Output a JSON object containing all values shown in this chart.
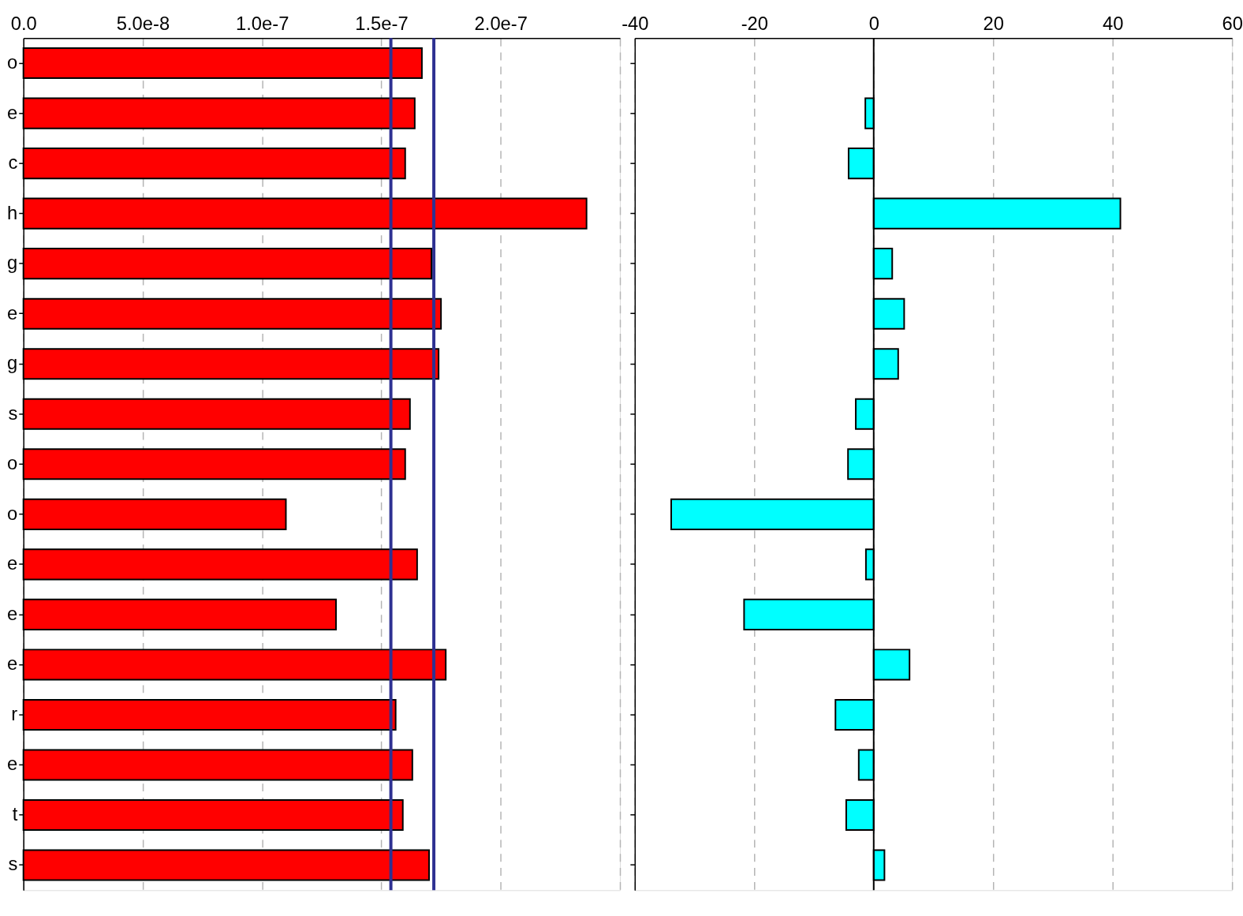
{
  "chart_data": [
    {
      "type": "bar",
      "orientation": "horizontal",
      "categories": [
        "o",
        "e",
        "c",
        "h",
        "g",
        "e",
        "g",
        "s",
        "o",
        "o",
        "e",
        "e",
        "e",
        "r",
        "e",
        "t",
        "s"
      ],
      "series": [
        {
          "color": "#ff0000",
          "values": [
            1.67e-07,
            1.64e-07,
            1.6e-07,
            2.36e-07,
            1.71e-07,
            1.75e-07,
            1.74e-07,
            1.62e-07,
            1.6e-07,
            1.1e-07,
            1.65e-07,
            1.31e-07,
            1.77e-07,
            1.56e-07,
            1.63e-07,
            1.59e-07,
            1.7e-07
          ]
        }
      ],
      "xlim": [
        0,
        2.5e-07
      ],
      "xticks": [
        {
          "value": 0,
          "label": "0.0"
        },
        {
          "value": 5e-08,
          "label": "5.0e-8"
        },
        {
          "value": 1e-07,
          "label": "1.0e-7"
        },
        {
          "value": 1.5e-07,
          "label": "1.5e-7"
        },
        {
          "value": 2e-07,
          "label": "2.0e-7"
        },
        {
          "value": 2.5e-07,
          "label": null
        }
      ],
      "grid": "x",
      "ref_lines": [
        {
          "axis": "x",
          "value": 1.54e-07,
          "color": "#2e3192"
        },
        {
          "axis": "x",
          "value": 1.72e-07,
          "color": "#2e3192"
        }
      ]
    },
    {
      "type": "bar",
      "orientation": "horizontal",
      "categories": [
        null,
        null,
        null,
        null,
        null,
        null,
        null,
        null,
        null,
        null,
        null,
        null,
        null,
        null,
        null,
        null,
        null
      ],
      "series": [
        {
          "color": "#00ffff",
          "values": [
            null,
            -1.4,
            -4.2,
            41.3,
            3.1,
            5.1,
            4.1,
            -3.0,
            -4.3,
            -33.9,
            -1.3,
            -21.7,
            6.0,
            -6.4,
            -2.5,
            -4.6,
            1.8
          ]
        }
      ],
      "xlim": [
        -40,
        60
      ],
      "xticks": [
        -40,
        -20,
        0,
        20,
        40,
        60
      ],
      "grid": "x",
      "tick_labels": "x",
      "ref_lines": [
        {
          "axis": "x",
          "value": 0,
          "color": "#000000"
        }
      ]
    }
  ]
}
